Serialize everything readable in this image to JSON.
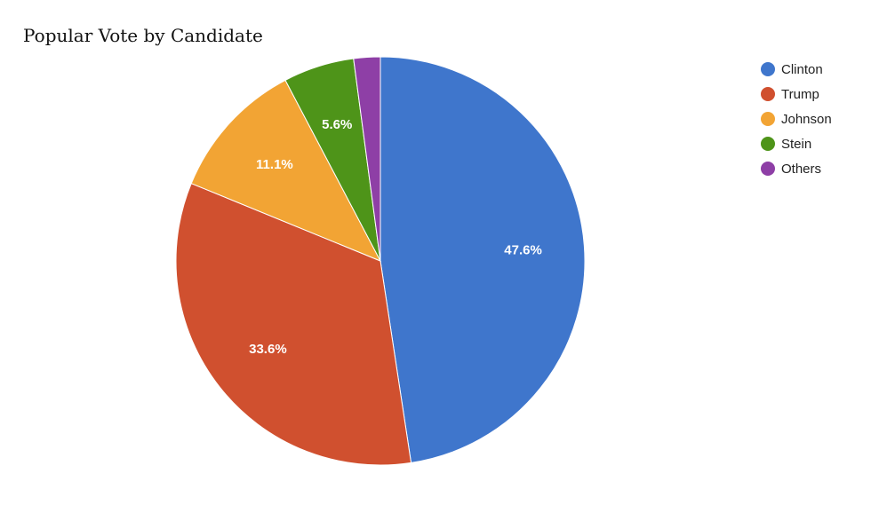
{
  "chart_data": {
    "type": "pie",
    "title": "Popular Vote by Candidate",
    "categories": [
      "Clinton",
      "Trump",
      "Johnson",
      "Stein",
      "Others"
    ],
    "values": [
      47.6,
      33.6,
      11.1,
      5.6,
      2.1
    ],
    "data_labels": [
      "47.6%",
      "33.6%",
      "11.1%",
      "5.6%",
      ""
    ],
    "colors": [
      "#3f76cc",
      "#d0502f",
      "#f2a434",
      "#4e9419",
      "#8e3fa6"
    ],
    "start_angle": "12 o'clock, clockwise",
    "legend_position": "right"
  }
}
